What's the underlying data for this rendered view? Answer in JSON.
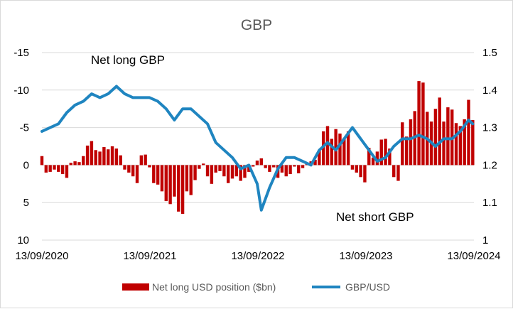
{
  "chart_data": {
    "type": "bar+line",
    "title": "GBP",
    "left_axis": {
      "reversed": true,
      "ylim": [
        10,
        -15
      ],
      "ticks": [
        10,
        5,
        0,
        -5,
        -10,
        -15
      ],
      "tick_labels": [
        "10",
        "5",
        "0",
        "-5",
        "-10",
        "-15"
      ]
    },
    "right_axis": {
      "ylim": [
        1.0,
        1.5
      ],
      "ticks": [
        1.0,
        1.1,
        1.2,
        1.3,
        1.4,
        1.5
      ],
      "tick_labels": [
        "1",
        "1.1",
        "1.2",
        "1.3",
        "1.4",
        "1.5"
      ]
    },
    "x_tick_labels": [
      "13/09/2020",
      "13/09/2021",
      "13/09/2022",
      "13/09/2023",
      "13/09/2024"
    ],
    "annotations": [
      "Net long GBP",
      "Net short GBP"
    ],
    "series": [
      {
        "name": "Net long USD position ($bn)",
        "type": "bar",
        "axis": "left",
        "color": "#c00000",
        "points": [
          [
            "2020-09-13",
            -1.2
          ],
          [
            "2020-09-27",
            1.0
          ],
          [
            "2020-10-11",
            0.9
          ],
          [
            "2020-10-25",
            0.6
          ],
          [
            "2020-11-08",
            0.9
          ],
          [
            "2020-11-22",
            1.2
          ],
          [
            "2020-12-06",
            1.7
          ],
          [
            "2020-12-20",
            -0.3
          ],
          [
            "2021-01-03",
            -0.5
          ],
          [
            "2021-01-17",
            -0.4
          ],
          [
            "2021-01-31",
            -1.2
          ],
          [
            "2021-02-14",
            -2.6
          ],
          [
            "2021-02-28",
            -3.2
          ],
          [
            "2021-03-14",
            -2.0
          ],
          [
            "2021-03-28",
            -1.8
          ],
          [
            "2021-04-11",
            -2.4
          ],
          [
            "2021-04-25",
            -2.1
          ],
          [
            "2021-05-09",
            -2.5
          ],
          [
            "2021-05-23",
            -2.2
          ],
          [
            "2021-06-06",
            -1.3
          ],
          [
            "2021-06-20",
            0.6
          ],
          [
            "2021-07-04",
            1.0
          ],
          [
            "2021-07-18",
            1.5
          ],
          [
            "2021-08-01",
            2.4
          ],
          [
            "2021-08-15",
            -1.3
          ],
          [
            "2021-08-29",
            -1.4
          ],
          [
            "2021-09-12",
            0.3
          ],
          [
            "2021-09-26",
            2.4
          ],
          [
            "2021-10-10",
            2.6
          ],
          [
            "2021-10-24",
            3.5
          ],
          [
            "2021-11-07",
            4.8
          ],
          [
            "2021-11-21",
            5.2
          ],
          [
            "2021-12-05",
            4.2
          ],
          [
            "2021-12-19",
            6.2
          ],
          [
            "2022-01-02",
            6.5
          ],
          [
            "2022-01-16",
            3.5
          ],
          [
            "2022-01-30",
            4.0
          ],
          [
            "2022-02-13",
            2.0
          ],
          [
            "2022-02-27",
            0.5
          ],
          [
            "2022-03-13",
            -0.2
          ],
          [
            "2022-03-27",
            1.5
          ],
          [
            "2022-04-10",
            2.5
          ],
          [
            "2022-04-24",
            1.0
          ],
          [
            "2022-05-08",
            0.8
          ],
          [
            "2022-05-22",
            1.5
          ],
          [
            "2022-06-05",
            2.4
          ],
          [
            "2022-06-19",
            1.8
          ],
          [
            "2022-07-03",
            1.5
          ],
          [
            "2022-07-17",
            2.1
          ],
          [
            "2022-07-31",
            1.7
          ],
          [
            "2022-08-14",
            0.9
          ],
          [
            "2022-08-28",
            0.2
          ],
          [
            "2022-09-11",
            -0.6
          ],
          [
            "2022-09-25",
            -0.9
          ],
          [
            "2022-10-09",
            0.4
          ],
          [
            "2022-10-23",
            0.9
          ],
          [
            "2022-11-06",
            0.3
          ],
          [
            "2022-11-20",
            1.7
          ],
          [
            "2022-12-04",
            1.0
          ],
          [
            "2022-12-18",
            1.5
          ],
          [
            "2023-01-01",
            1.2
          ],
          [
            "2023-01-15",
            0.2
          ],
          [
            "2023-01-29",
            1.1
          ],
          [
            "2023-02-12",
            0.4
          ],
          [
            "2023-02-26",
            -0.3
          ],
          [
            "2023-03-12",
            -0.5
          ],
          [
            "2023-03-26",
            -0.7
          ],
          [
            "2023-04-09",
            -2.0
          ],
          [
            "2023-04-23",
            -4.5
          ],
          [
            "2023-05-07",
            -5.2
          ],
          [
            "2023-05-21",
            -3.5
          ],
          [
            "2023-06-04",
            -4.8
          ],
          [
            "2023-06-18",
            -4.2
          ],
          [
            "2023-07-02",
            -3.6
          ],
          [
            "2023-07-16",
            -4.5
          ],
          [
            "2023-07-30",
            0.6
          ],
          [
            "2023-08-13",
            1.0
          ],
          [
            "2023-08-27",
            1.6
          ],
          [
            "2023-09-10",
            2.3
          ],
          [
            "2023-09-24",
            -2.3
          ],
          [
            "2023-10-08",
            -1.0
          ],
          [
            "2023-10-22",
            -1.8
          ],
          [
            "2023-11-05",
            -3.4
          ],
          [
            "2023-11-19",
            -3.5
          ],
          [
            "2023-12-03",
            -2.2
          ],
          [
            "2023-12-17",
            1.6
          ],
          [
            "2024-01-01",
            2.1
          ],
          [
            "2024-01-15",
            -5.7
          ],
          [
            "2024-01-29",
            -3.8
          ],
          [
            "2024-02-12",
            -6.1
          ],
          [
            "2024-02-26",
            -7.2
          ],
          [
            "2024-03-11",
            -11.2
          ],
          [
            "2024-03-25",
            -11.0
          ],
          [
            "2024-04-08",
            -7.1
          ],
          [
            "2024-04-22",
            -5.8
          ],
          [
            "2024-05-06",
            -7.5
          ],
          [
            "2024-05-20",
            -9.0
          ],
          [
            "2024-06-03",
            -5.8
          ],
          [
            "2024-06-17",
            -7.7
          ],
          [
            "2024-07-01",
            -7.4
          ],
          [
            "2024-07-15",
            -5.6
          ],
          [
            "2024-07-29",
            -5.2
          ],
          [
            "2024-08-12",
            -6.1
          ],
          [
            "2024-08-26",
            -8.7
          ],
          [
            "2024-09-09",
            -6.0
          ]
        ]
      },
      {
        "name": "GBP/USD",
        "type": "line",
        "axis": "right",
        "color": "#1f85c0",
        "points": [
          [
            "2020-09-13",
            1.29
          ],
          [
            "2020-10-11",
            1.3
          ],
          [
            "2020-11-08",
            1.31
          ],
          [
            "2020-12-06",
            1.34
          ],
          [
            "2021-01-03",
            1.36
          ],
          [
            "2021-01-31",
            1.37
          ],
          [
            "2021-02-28",
            1.39
          ],
          [
            "2021-03-28",
            1.38
          ],
          [
            "2021-04-25",
            1.39
          ],
          [
            "2021-05-23",
            1.41
          ],
          [
            "2021-06-20",
            1.39
          ],
          [
            "2021-07-18",
            1.38
          ],
          [
            "2021-08-15",
            1.38
          ],
          [
            "2021-09-12",
            1.38
          ],
          [
            "2021-10-10",
            1.37
          ],
          [
            "2021-11-07",
            1.35
          ],
          [
            "2021-12-05",
            1.32
          ],
          [
            "2022-01-02",
            1.35
          ],
          [
            "2022-01-30",
            1.35
          ],
          [
            "2022-02-27",
            1.33
          ],
          [
            "2022-03-27",
            1.31
          ],
          [
            "2022-04-24",
            1.26
          ],
          [
            "2022-05-22",
            1.24
          ],
          [
            "2022-06-19",
            1.22
          ],
          [
            "2022-07-17",
            1.19
          ],
          [
            "2022-08-14",
            1.2
          ],
          [
            "2022-09-11",
            1.15
          ],
          [
            "2022-09-25",
            1.08
          ],
          [
            "2022-10-23",
            1.14
          ],
          [
            "2022-11-20",
            1.19
          ],
          [
            "2022-12-18",
            1.22
          ],
          [
            "2023-01-15",
            1.22
          ],
          [
            "2023-02-12",
            1.21
          ],
          [
            "2023-03-12",
            1.2
          ],
          [
            "2023-04-09",
            1.24
          ],
          [
            "2023-05-07",
            1.26
          ],
          [
            "2023-06-04",
            1.24
          ],
          [
            "2023-07-02",
            1.27
          ],
          [
            "2023-07-30",
            1.3
          ],
          [
            "2023-08-27",
            1.27
          ],
          [
            "2023-09-24",
            1.24
          ],
          [
            "2023-10-22",
            1.21
          ],
          [
            "2023-11-19",
            1.22
          ],
          [
            "2023-12-17",
            1.25
          ],
          [
            "2024-01-15",
            1.27
          ],
          [
            "2024-02-12",
            1.27
          ],
          [
            "2024-03-11",
            1.28
          ],
          [
            "2024-04-08",
            1.27
          ],
          [
            "2024-05-06",
            1.25
          ],
          [
            "2024-06-03",
            1.27
          ],
          [
            "2024-07-01",
            1.27
          ],
          [
            "2024-07-29",
            1.29
          ],
          [
            "2024-08-26",
            1.32
          ],
          [
            "2024-09-09",
            1.31
          ]
        ]
      }
    ],
    "legend": {
      "position": "bottom",
      "items": [
        "Net long USD position ($bn)",
        "GBP/USD"
      ]
    },
    "grid": "horizontal"
  }
}
